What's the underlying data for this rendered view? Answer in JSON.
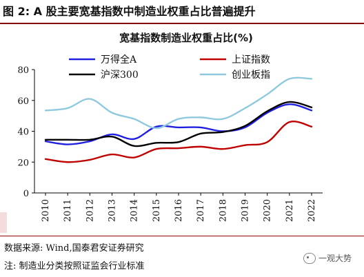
{
  "figure_title": "图 2:  A 股主要宽基指数中制造业权重占比普遍提升",
  "source": "数据来源:  Wind,国泰君安证券研究",
  "note": "注:  制造业分类按照证监会行业标准",
  "watermark": "一观大势",
  "colors": {
    "title_rule": "#8b0000",
    "series": [
      "#1f1fe0",
      "#c00000",
      "#000000",
      "#8fc9dd"
    ]
  },
  "chart_data": {
    "type": "line",
    "title": "宽基指数制造业权重占比(%)",
    "xlabel": "",
    "ylabel": "",
    "x": [
      "2010",
      "2011",
      "2012",
      "2013",
      "2014",
      "2015",
      "2016",
      "2017",
      "2018",
      "2019",
      "2020",
      "2021",
      "2022"
    ],
    "ylim": [
      0,
      80
    ],
    "yticks": [
      0,
      20,
      40,
      60,
      80
    ],
    "grid": false,
    "legend": "top",
    "series": [
      {
        "name": "万得全A",
        "values": [
          33.5,
          31.5,
          33.5,
          38,
          35,
          43,
          42.5,
          42.5,
          40,
          42.5,
          52,
          57.5,
          53.5
        ]
      },
      {
        "name": "上证指数",
        "values": [
          22,
          20,
          21.5,
          25,
          23,
          28.5,
          29,
          30,
          28.5,
          31,
          33,
          46,
          43
        ]
      },
      {
        "name": "沪深300",
        "values": [
          34.5,
          34.5,
          34.5,
          36.5,
          30.5,
          32.5,
          33,
          38.5,
          39.5,
          43.5,
          53,
          59,
          55.5
        ]
      },
      {
        "name": "创业板指",
        "values": [
          53.5,
          55,
          61,
          52,
          48,
          42,
          48,
          49,
          48,
          55,
          64,
          74,
          74
        ]
      }
    ]
  }
}
